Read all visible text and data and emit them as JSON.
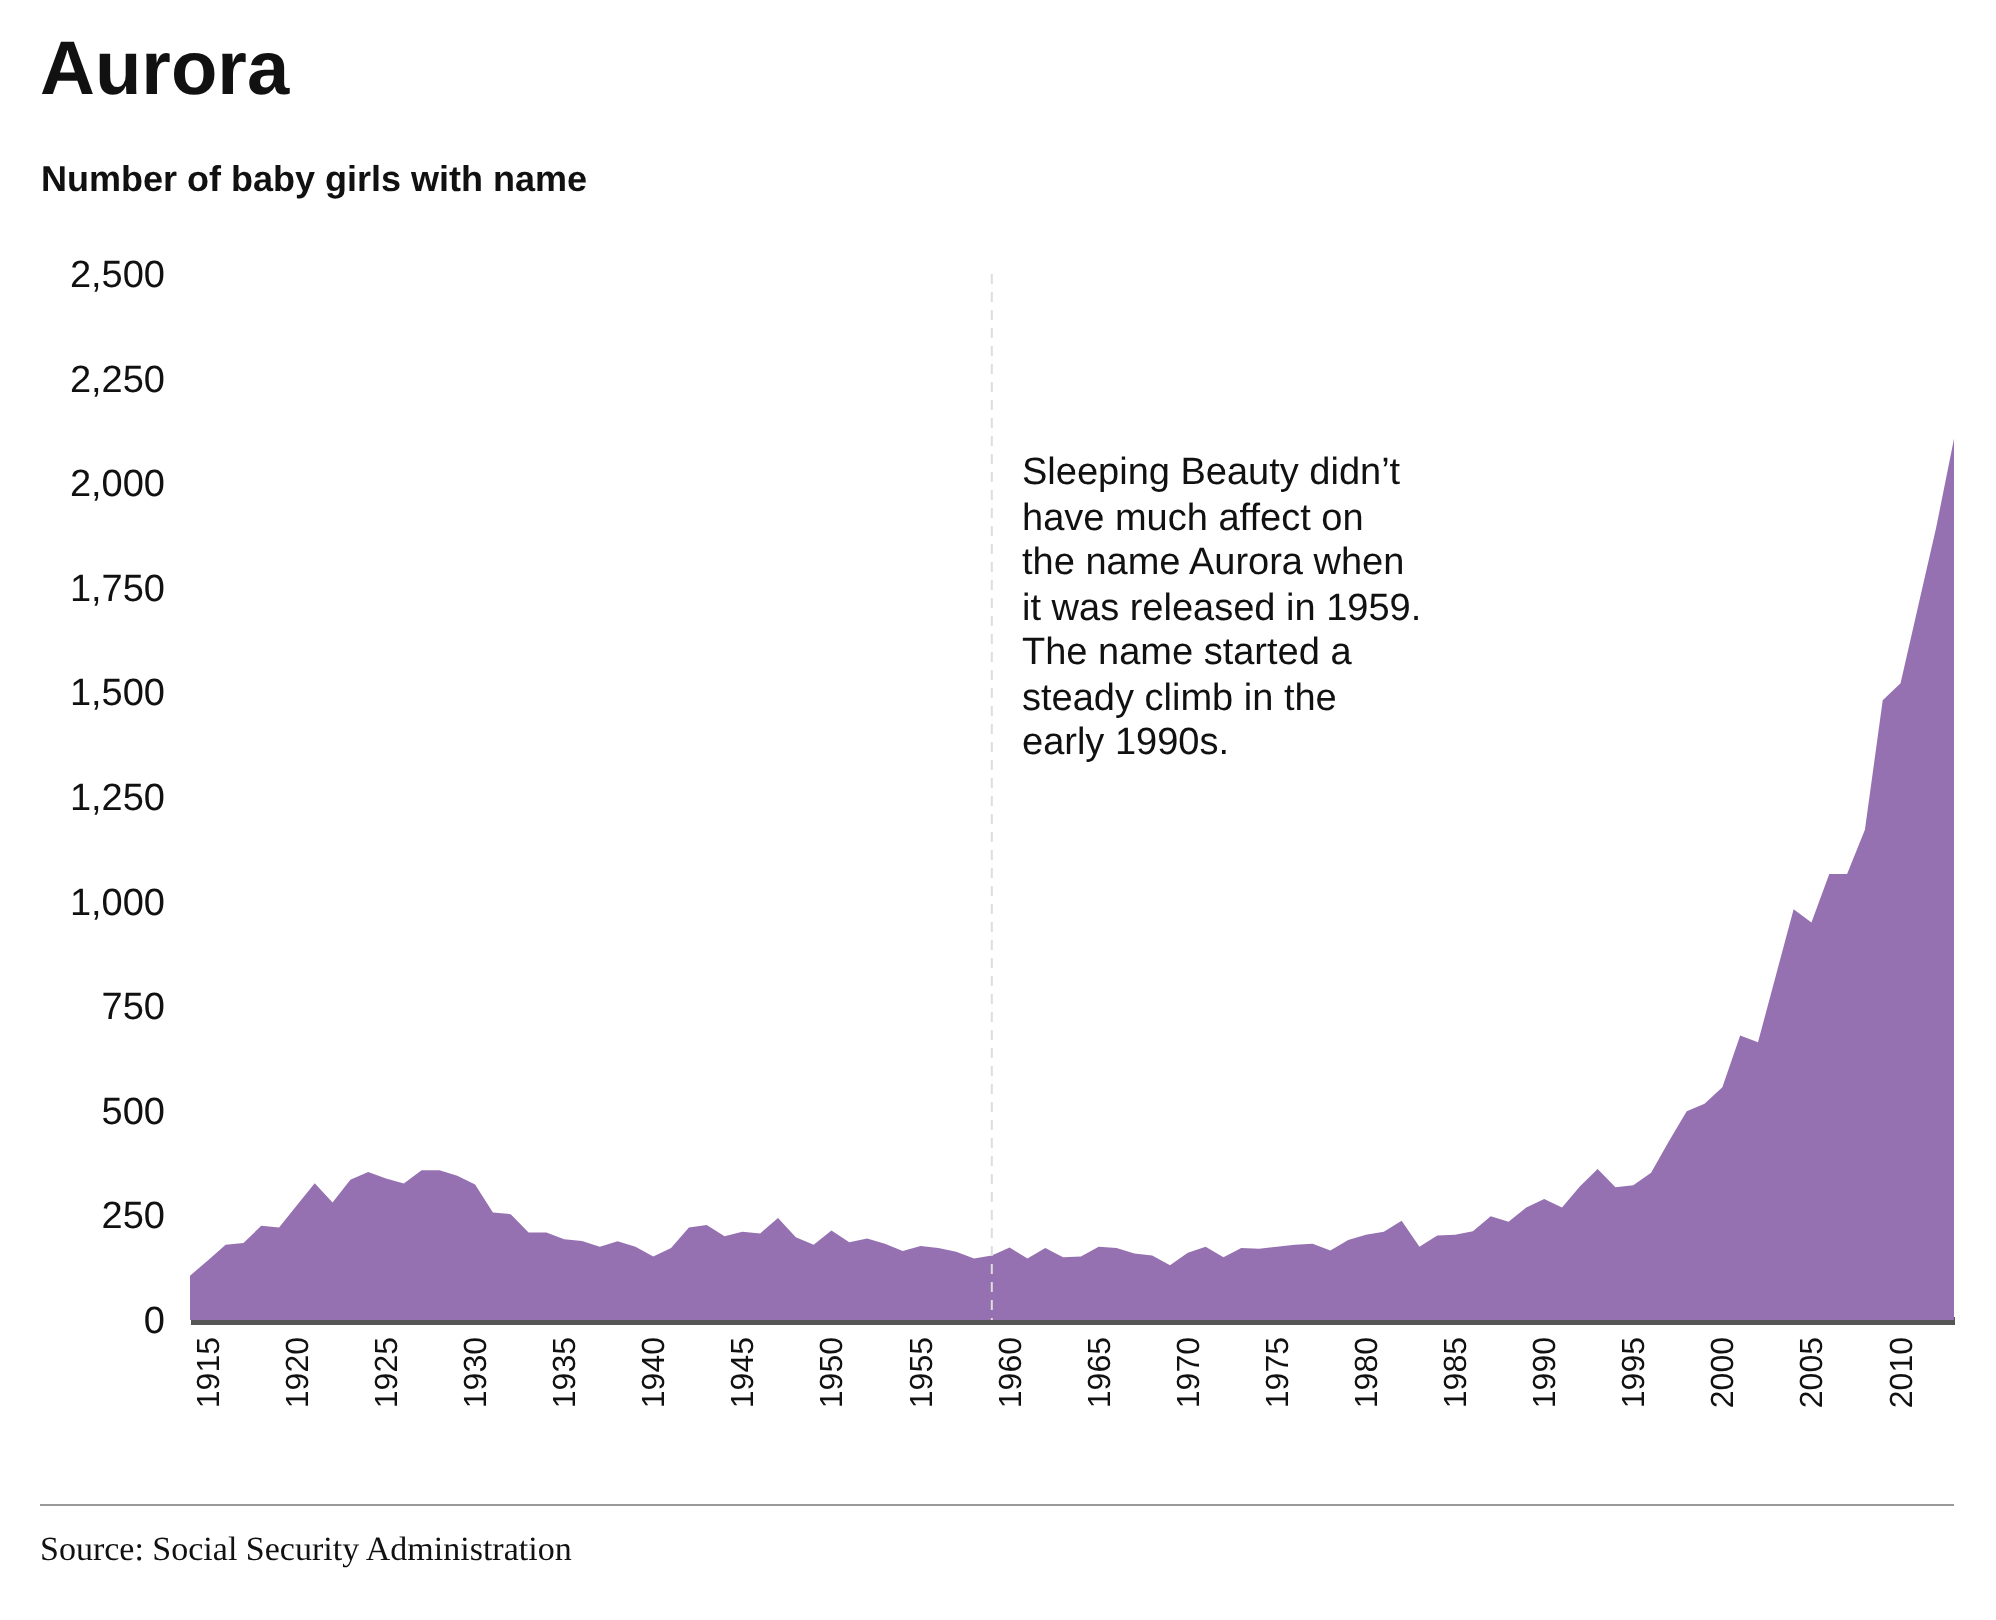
{
  "chart_data": {
    "type": "area",
    "title": "Aurora",
    "ylabel": "Number of baby girls with name",
    "x": [
      1914,
      1915,
      1916,
      1917,
      1918,
      1919,
      1920,
      1921,
      1922,
      1923,
      1924,
      1925,
      1926,
      1927,
      1928,
      1929,
      1930,
      1931,
      1932,
      1933,
      1934,
      1935,
      1936,
      1937,
      1938,
      1939,
      1940,
      1941,
      1942,
      1943,
      1944,
      1945,
      1946,
      1947,
      1948,
      1949,
      1950,
      1951,
      1952,
      1953,
      1954,
      1955,
      1956,
      1957,
      1958,
      1959,
      1960,
      1961,
      1962,
      1963,
      1964,
      1965,
      1966,
      1967,
      1968,
      1969,
      1970,
      1971,
      1972,
      1973,
      1974,
      1975,
      1976,
      1977,
      1978,
      1979,
      1980,
      1981,
      1982,
      1983,
      1984,
      1985,
      1986,
      1987,
      1988,
      1989,
      1990,
      1991,
      1992,
      1993,
      1994,
      1995,
      1996,
      1997,
      1998,
      1999,
      2000,
      2001,
      2002,
      2003,
      2004,
      2005,
      2006,
      2007,
      2008,
      2009,
      2010,
      2011,
      2012,
      2013
    ],
    "values": [
      106,
      142,
      180,
      184,
      225,
      221,
      274,
      327,
      281,
      335,
      354,
      338,
      326,
      358,
      358,
      345,
      324,
      257,
      253,
      209,
      209,
      193,
      189,
      175,
      188,
      175,
      152,
      172,
      221,
      227,
      200,
      211,
      207,
      244,
      198,
      180,
      214,
      186,
      195,
      182,
      165,
      177,
      172,
      163,
      147,
      154,
      173,
      147,
      172,
      150,
      152,
      175,
      172,
      159,
      154,
      131,
      161,
      175,
      150,
      172,
      170,
      175,
      180,
      182,
      166,
      191,
      204,
      211,
      237,
      175,
      202,
      204,
      212,
      248,
      235,
      269,
      289,
      269,
      319,
      361,
      317,
      322,
      352,
      427,
      499,
      517,
      556,
      680,
      664,
      823,
      982,
      950,
      1066,
      1066,
      1172,
      1481,
      1522,
      1708,
      1894,
      2106
    ],
    "color": "#9571b1",
    "xlim": [
      1914,
      2013
    ],
    "xticks": [
      1915,
      1920,
      1925,
      1930,
      1935,
      1940,
      1945,
      1950,
      1955,
      1960,
      1965,
      1970,
      1975,
      1980,
      1985,
      1990,
      1995,
      2000,
      2005,
      2010
    ],
    "ylim": [
      0,
      2500
    ],
    "yticks": [
      0,
      250,
      500,
      750,
      {
        "value": 1000,
        "label": "1,000"
      },
      {
        "value": 1250,
        "label": "1,250"
      },
      {
        "value": 1500,
        "label": "1,500"
      },
      {
        "value": 1750,
        "label": "1,750"
      },
      {
        "value": 2000,
        "label": "2,000"
      },
      {
        "value": 2250,
        "label": "2,250"
      },
      {
        "value": 2500,
        "label": "2,500"
      }
    ],
    "ref_lines": [
      {
        "axis": "x",
        "value": 1959,
        "color": "#dddddd",
        "line_style": "dashed"
      }
    ],
    "annotations": [
      "Sleeping Beauty didn’t\nhave much affect on\nthe name Aurora when\nit was released in 1959.\nThe name started a\nsteady climb in the\nearly 1990s.",
      "Source: Social Security Administration"
    ]
  }
}
